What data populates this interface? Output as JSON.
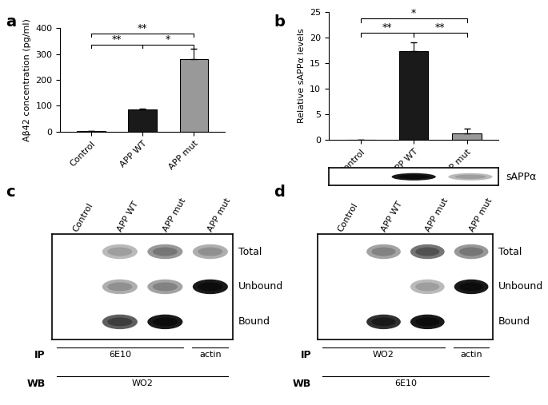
{
  "chart_data": [
    {
      "panel": "a",
      "type": "bar",
      "y_label": "Aβ42 concentration (pg/ml)",
      "categories": [
        "Control",
        "APP WT",
        "APP mut"
      ],
      "values": [
        2,
        87,
        280
      ],
      "errors": [
        1,
        3,
        42
      ],
      "colors": [
        "#ffffff",
        "#1a1a1a",
        "#999999"
      ],
      "ylim": [
        0,
        400
      ],
      "yticks": [
        0,
        100,
        200,
        300,
        400
      ],
      "significance": [
        {
          "between": [
            "Control",
            "APP WT"
          ],
          "label": "**"
        },
        {
          "between": [
            "APP WT",
            "APP mut"
          ],
          "label": "*"
        },
        {
          "between": [
            "Control",
            "APP mut"
          ],
          "label": "**"
        }
      ]
    },
    {
      "panel": "b",
      "type": "bar",
      "y_label": "Relative sAPPα levels",
      "categories": [
        "Control",
        "APP WT",
        "APP mut"
      ],
      "values": [
        0,
        17.3,
        1.2
      ],
      "errors": [
        0,
        1.8,
        1.0
      ],
      "colors": [
        "#ffffff",
        "#1a1a1a",
        "#999999"
      ],
      "ylim": [
        0,
        25
      ],
      "yticks": [
        0,
        5,
        10,
        15,
        20,
        25
      ],
      "significance": [
        {
          "between": [
            "Control",
            "APP WT"
          ],
          "label": "**"
        },
        {
          "between": [
            "APP WT",
            "APP mut"
          ],
          "label": "**"
        },
        {
          "between": [
            "Control",
            "APP mut"
          ],
          "label": "*"
        }
      ]
    }
  ],
  "blots": [
    {
      "rows": [
        {
          "name": "sAPPα",
          "bands": [
            0,
            1.0,
            0.3
          ]
        }
      ]
    },
    {
      "panel": "c",
      "lanes": [
        "Control",
        "APP WT",
        "APP mut",
        "APP mut"
      ],
      "rows": [
        {
          "name": "Total",
          "bands": [
            0,
            0.3,
            0.45,
            0.35
          ]
        },
        {
          "name": "Unbound",
          "bands": [
            0,
            0.35,
            0.4,
            1.0
          ]
        },
        {
          "name": "Bound",
          "bands": [
            0,
            0.7,
            1.0,
            0
          ]
        }
      ],
      "annotations": [
        {
          "label": "IP",
          "groups": [
            {
              "text": "6E10",
              "lanes": 3
            },
            {
              "text": "actin",
              "lanes": 1
            }
          ]
        },
        {
          "label": "WB",
          "groups": [
            {
              "text": "WO2",
              "lanes": 4
            }
          ]
        }
      ]
    },
    {
      "panel": "d",
      "lanes": [
        "Control",
        "APP WT",
        "APP mut",
        "APP mut"
      ],
      "rows": [
        {
          "name": "Total",
          "bands": [
            0,
            0.4,
            0.6,
            0.45
          ]
        },
        {
          "name": "Unbound",
          "bands": [
            0,
            0,
            0.3,
            1.0
          ]
        },
        {
          "name": "Bound",
          "bands": [
            0,
            0.9,
            1.0,
            0
          ]
        }
      ],
      "annotations": [
        {
          "label": "IP",
          "groups": [
            {
              "text": "WO2",
              "lanes": 3
            },
            {
              "text": "actin",
              "lanes": 1
            }
          ]
        },
        {
          "label": "WB",
          "groups": [
            {
              "text": "6E10",
              "lanes": 4
            }
          ]
        }
      ]
    }
  ]
}
